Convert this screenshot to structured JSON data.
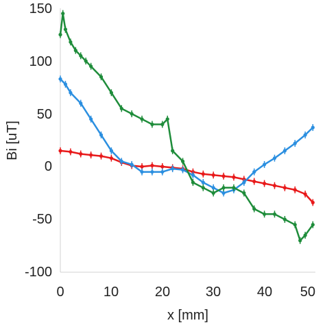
{
  "chart_data": {
    "type": "scatter",
    "xlabel": "x [mm]",
    "ylabel": "Bi [uT]",
    "xlim": [
      0,
      50
    ],
    "ylim": [
      -100,
      150
    ],
    "xticks": [
      "0",
      "10",
      "20",
      "30",
      "40",
      "50"
    ],
    "yticks": [
      "150",
      "100",
      "50",
      "0",
      "-50",
      "-100"
    ],
    "grid": false,
    "series": [
      {
        "color": "#e8191a",
        "x": [
          0,
          2,
          4,
          6,
          8,
          10,
          12,
          14,
          16,
          18,
          20,
          22,
          24,
          26,
          28,
          30,
          32,
          34,
          36,
          38,
          40,
          42,
          44,
          46,
          48,
          49.5
        ],
        "y": [
          15,
          14,
          12,
          11,
          10,
          8,
          4,
          1,
          0,
          1,
          0,
          -1,
          -2,
          -5,
          -7,
          -8,
          -9,
          -10,
          -12,
          -14,
          -16,
          -18,
          -20,
          -22,
          -26,
          -34
        ]
      },
      {
        "color": "#2b8fe0",
        "x": [
          0,
          1,
          2,
          4,
          6,
          8,
          10,
          12,
          14,
          16,
          18,
          20,
          22,
          24,
          26,
          28,
          30,
          32,
          34,
          36,
          38,
          40,
          42,
          44,
          46,
          48,
          49.5
        ],
        "y": [
          83,
          78,
          70,
          60,
          45,
          30,
          15,
          5,
          2,
          -5,
          -5,
          -5,
          -2,
          -3,
          -8,
          -15,
          -20,
          -25,
          -22,
          -15,
          -5,
          2,
          8,
          15,
          22,
          30,
          37
        ]
      },
      {
        "color": "#1e8c3a",
        "x": [
          0,
          0.5,
          1,
          2,
          3,
          4,
          5,
          6,
          8,
          10,
          12,
          14,
          16,
          18,
          20,
          21,
          22,
          24,
          26,
          28,
          30,
          32,
          34,
          36,
          38,
          40,
          42,
          44,
          46,
          47,
          48,
          49.5
        ],
        "y": [
          125,
          145,
          130,
          118,
          110,
          105,
          100,
          95,
          85,
          70,
          55,
          50,
          45,
          40,
          40,
          45,
          15,
          5,
          -15,
          -20,
          -25,
          -20,
          -20,
          -25,
          -40,
          -45,
          -45,
          -50,
          -55,
          -70,
          -65,
          -55
        ]
      }
    ]
  }
}
